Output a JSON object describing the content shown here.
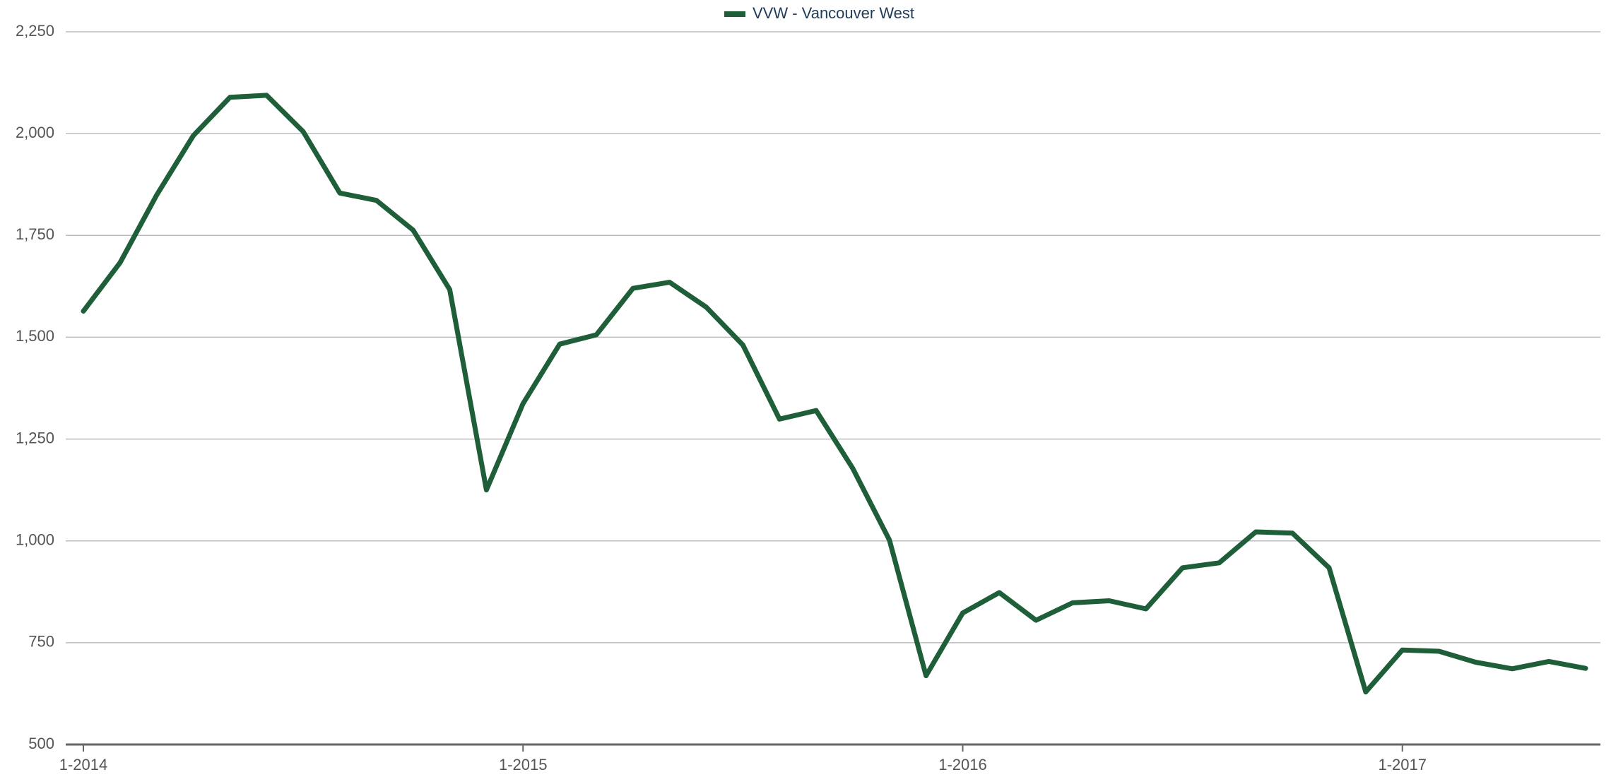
{
  "chart_data": {
    "type": "line",
    "categories": [
      "1-2014",
      null,
      null,
      null,
      null,
      null,
      null,
      null,
      null,
      null,
      null,
      null,
      "1-2015",
      null,
      null,
      null,
      null,
      null,
      null,
      null,
      null,
      null,
      null,
      null,
      "1-2016",
      null,
      null,
      null,
      null,
      null,
      null,
      null,
      null,
      null,
      null,
      null,
      "1-2017",
      null,
      null,
      null,
      null,
      null
    ],
    "series": [
      {
        "name": "VVW - Vancouver West",
        "color": "#1e5e38",
        "values": [
          1564,
          1683,
          1849,
          1995,
          2089,
          2094,
          2005,
          1854,
          1836,
          1763,
          1617,
          1125,
          1337,
          1483,
          1506,
          1620,
          1635,
          1574,
          1481,
          1299,
          1320,
          1178,
          1002,
          669,
          823,
          873,
          805,
          848,
          853,
          833,
          934,
          946,
          1022,
          1019,
          934,
          629,
          732,
          729,
          702,
          686,
          704,
          687
        ]
      }
    ],
    "ylim": [
      500,
      2250
    ],
    "yticks": [
      {
        "value": 500,
        "label": "500"
      },
      {
        "value": 750,
        "label": "750"
      },
      {
        "value": 1000,
        "label": "1,000"
      },
      {
        "value": 1250,
        "label": "1,250"
      },
      {
        "value": 1500,
        "label": "1,500"
      },
      {
        "value": 1750,
        "label": "1,750"
      },
      {
        "value": 2000,
        "label": "2,000"
      },
      {
        "value": 2250,
        "label": "2,250"
      }
    ],
    "grid": true,
    "legend": "top"
  }
}
